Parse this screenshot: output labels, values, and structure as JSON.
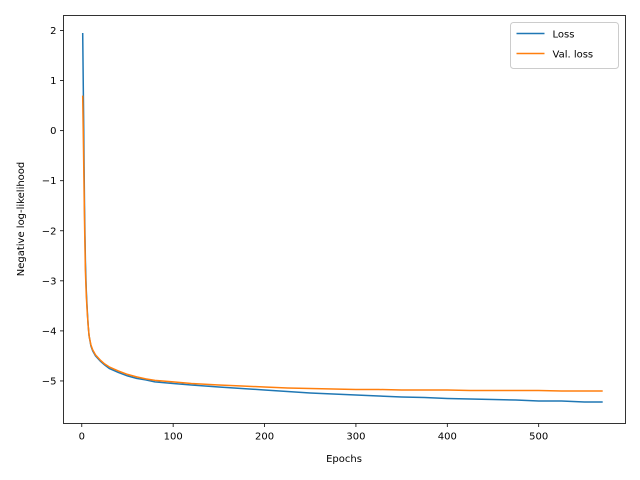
{
  "chart_data": {
    "type": "line",
    "xlabel": "Epochs",
    "ylabel": "Negative log-likelihood",
    "xlim": [
      -20,
      595
    ],
    "ylim": [
      -5.85,
      2.3
    ],
    "xticks": [
      0,
      100,
      200,
      300,
      400,
      500
    ],
    "xtick_labels": [
      "0",
      "100",
      "200",
      "300",
      "400",
      "500"
    ],
    "yticks": [
      2,
      1,
      0,
      -1,
      -2,
      -3,
      -4,
      -5
    ],
    "ytick_labels": [
      "2",
      "1",
      "0",
      "−1",
      "−2",
      "−3",
      "−4",
      "−5"
    ],
    "legend_position": "top-right",
    "series": [
      {
        "name": "Loss",
        "color": "#1f77b4",
        "x": [
          1,
          2,
          3,
          4,
          5,
          6,
          7,
          8,
          10,
          12,
          15,
          20,
          25,
          30,
          40,
          50,
          60,
          70,
          80,
          100,
          120,
          150,
          175,
          200,
          225,
          250,
          275,
          300,
          325,
          350,
          375,
          400,
          425,
          450,
          475,
          500,
          525,
          550,
          570
        ],
        "y": [
          1.95,
          0.3,
          -1.5,
          -2.6,
          -3.2,
          -3.6,
          -3.9,
          -4.1,
          -4.3,
          -4.4,
          -4.5,
          -4.6,
          -4.68,
          -4.75,
          -4.83,
          -4.9,
          -4.95,
          -4.98,
          -5.02,
          -5.05,
          -5.08,
          -5.12,
          -5.15,
          -5.18,
          -5.21,
          -5.24,
          -5.26,
          -5.28,
          -5.3,
          -5.32,
          -5.33,
          -5.35,
          -5.36,
          -5.37,
          -5.38,
          -5.4,
          -5.4,
          -5.42,
          -5.42
        ]
      },
      {
        "name": "Val. loss",
        "color": "#ff7f0e",
        "x": [
          1,
          2,
          3,
          4,
          5,
          6,
          7,
          8,
          10,
          12,
          15,
          20,
          25,
          30,
          40,
          50,
          60,
          70,
          80,
          100,
          120,
          150,
          175,
          200,
          225,
          250,
          275,
          300,
          325,
          350,
          375,
          400,
          425,
          450,
          475,
          500,
          525,
          550,
          570
        ],
        "y": [
          0.7,
          -0.5,
          -1.8,
          -2.8,
          -3.3,
          -3.65,
          -3.9,
          -4.1,
          -4.28,
          -4.38,
          -4.48,
          -4.58,
          -4.66,
          -4.72,
          -4.8,
          -4.87,
          -4.92,
          -4.96,
          -4.99,
          -5.02,
          -5.05,
          -5.08,
          -5.1,
          -5.12,
          -5.14,
          -5.15,
          -5.16,
          -5.17,
          -5.17,
          -5.18,
          -5.18,
          -5.18,
          -5.19,
          -5.19,
          -5.19,
          -5.19,
          -5.2,
          -5.2,
          -5.2
        ]
      }
    ]
  }
}
